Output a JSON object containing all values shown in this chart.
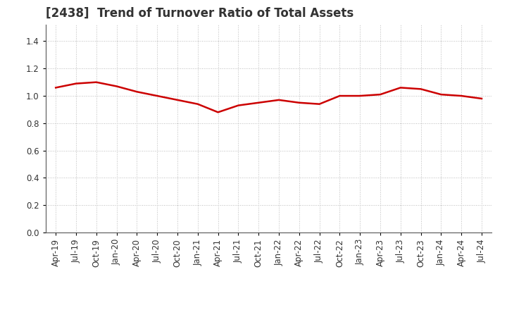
{
  "title": "[2438]  Trend of Turnover Ratio of Total Assets",
  "x_labels": [
    "Apr-19",
    "Jul-19",
    "Oct-19",
    "Jan-20",
    "Apr-20",
    "Jul-20",
    "Oct-20",
    "Jan-21",
    "Apr-21",
    "Jul-21",
    "Oct-21",
    "Jan-22",
    "Apr-22",
    "Jul-22",
    "Oct-22",
    "Jan-23",
    "Apr-23",
    "Jul-23",
    "Oct-23",
    "Jan-24",
    "Apr-24",
    "Jul-24"
  ],
  "y_values": [
    1.06,
    1.09,
    1.1,
    1.07,
    1.03,
    1.0,
    0.97,
    0.94,
    0.88,
    0.93,
    0.95,
    0.97,
    0.95,
    0.94,
    1.0,
    1.0,
    1.01,
    1.06,
    1.05,
    1.01,
    1.0,
    0.98
  ],
  "line_color": "#cc0000",
  "line_width": 1.8,
  "ylim": [
    0.0,
    1.52
  ],
  "yticks": [
    0.0,
    0.2,
    0.4,
    0.6,
    0.8,
    1.0,
    1.2,
    1.4
  ],
  "background_color": "#ffffff",
  "grid_color": "#bbbbbb",
  "title_fontsize": 12,
  "tick_fontsize": 8.5,
  "title_color": "#333333"
}
